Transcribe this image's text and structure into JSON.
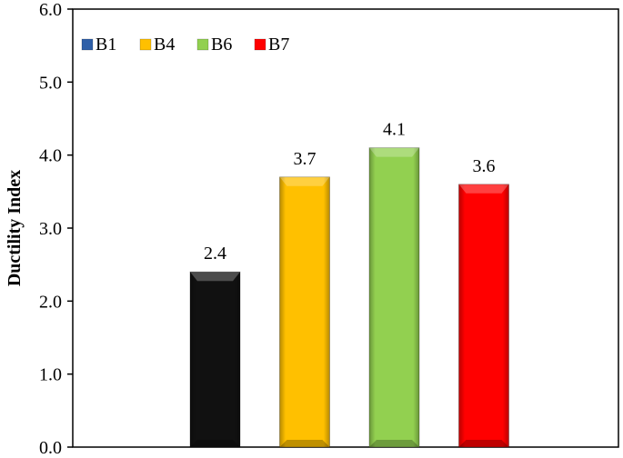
{
  "chart_data": {
    "type": "bar",
    "categories": [
      "B1",
      "B4",
      "B6",
      "B7"
    ],
    "values": [
      2.4,
      3.7,
      4.1,
      3.6
    ],
    "data_labels": [
      "2.4",
      "3.7",
      "4.1",
      "3.6"
    ],
    "colors": [
      "#111111",
      "#FFC000",
      "#92D050",
      "#FF0000"
    ],
    "legend_colors": [
      "#2E5FA8",
      "#FFC000",
      "#92D050",
      "#FF0000"
    ],
    "title": "",
    "xlabel": "",
    "ylabel": "Ductility Index",
    "ylim": [
      0,
      6
    ],
    "yticks": [
      "0.0",
      "1.0",
      "2.0",
      "3.0",
      "4.0",
      "5.0",
      "6.0"
    ],
    "grid": false,
    "legend": {
      "position": "top-left",
      "entries": [
        "B1",
        "B4",
        "B6",
        "B7"
      ]
    }
  }
}
